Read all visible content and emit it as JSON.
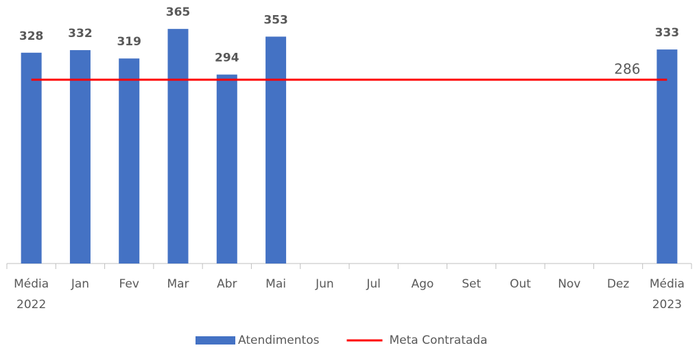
{
  "chart_data": {
    "type": "bar",
    "categories": [
      "Média\n2022",
      "Jan",
      "Fev",
      "Mar",
      "Abr",
      "Mai",
      "Jun",
      "Jul",
      "Ago",
      "Set",
      "Out",
      "Nov",
      "Dez",
      "Média\n2023"
    ],
    "series": [
      {
        "name": "Atendimentos",
        "type": "bar",
        "color": "#4472c4",
        "values": [
          328,
          332,
          319,
          365,
          294,
          353,
          null,
          null,
          null,
          null,
          null,
          null,
          null,
          333
        ]
      },
      {
        "name": "Meta Contratada",
        "type": "line",
        "color": "#ff0000",
        "values": [
          286,
          286,
          286,
          286,
          286,
          286,
          286,
          286,
          286,
          286,
          286,
          286,
          286,
          286
        ]
      }
    ],
    "ylim": [
      0,
      410
    ],
    "legend": "bottom"
  }
}
